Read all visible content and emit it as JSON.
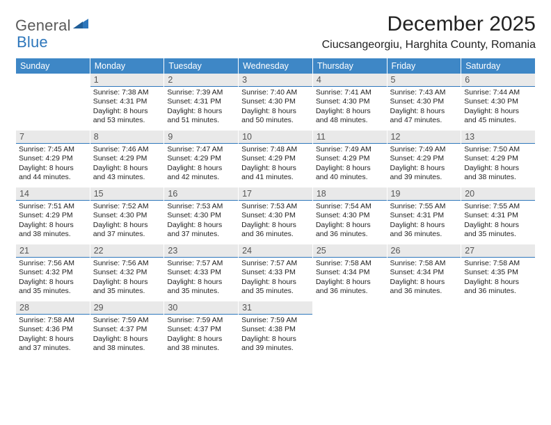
{
  "logo": {
    "text1": "General",
    "text2": "Blue"
  },
  "title": "December 2025",
  "location": "Ciucsangeorgiu, Harghita County, Romania",
  "colors": {
    "header_bg": "#3e87c6",
    "header_text": "#ffffff",
    "daynum_bg": "#e9e9e9",
    "daynum_text": "#555555",
    "daynum_border": "#2d76bb",
    "body_text": "#222222",
    "logo_gray": "#5a5a5a",
    "logo_blue": "#2d76bb",
    "page_bg": "#ffffff"
  },
  "typography": {
    "title_fontsize": 30,
    "location_fontsize": 16,
    "header_fontsize": 12.5,
    "daynum_fontsize": 12.5,
    "cell_fontsize": 10.5,
    "logo_fontsize": 22
  },
  "weekdays": [
    "Sunday",
    "Monday",
    "Tuesday",
    "Wednesday",
    "Thursday",
    "Friday",
    "Saturday"
  ],
  "weeks": [
    [
      {
        "n": "",
        "l1": "",
        "l2": "",
        "l3": "",
        "l4": ""
      },
      {
        "n": "1",
        "l1": "Sunrise: 7:38 AM",
        "l2": "Sunset: 4:31 PM",
        "l3": "Daylight: 8 hours",
        "l4": "and 53 minutes."
      },
      {
        "n": "2",
        "l1": "Sunrise: 7:39 AM",
        "l2": "Sunset: 4:31 PM",
        "l3": "Daylight: 8 hours",
        "l4": "and 51 minutes."
      },
      {
        "n": "3",
        "l1": "Sunrise: 7:40 AM",
        "l2": "Sunset: 4:30 PM",
        "l3": "Daylight: 8 hours",
        "l4": "and 50 minutes."
      },
      {
        "n": "4",
        "l1": "Sunrise: 7:41 AM",
        "l2": "Sunset: 4:30 PM",
        "l3": "Daylight: 8 hours",
        "l4": "and 48 minutes."
      },
      {
        "n": "5",
        "l1": "Sunrise: 7:43 AM",
        "l2": "Sunset: 4:30 PM",
        "l3": "Daylight: 8 hours",
        "l4": "and 47 minutes."
      },
      {
        "n": "6",
        "l1": "Sunrise: 7:44 AM",
        "l2": "Sunset: 4:30 PM",
        "l3": "Daylight: 8 hours",
        "l4": "and 45 minutes."
      }
    ],
    [
      {
        "n": "7",
        "l1": "Sunrise: 7:45 AM",
        "l2": "Sunset: 4:29 PM",
        "l3": "Daylight: 8 hours",
        "l4": "and 44 minutes."
      },
      {
        "n": "8",
        "l1": "Sunrise: 7:46 AM",
        "l2": "Sunset: 4:29 PM",
        "l3": "Daylight: 8 hours",
        "l4": "and 43 minutes."
      },
      {
        "n": "9",
        "l1": "Sunrise: 7:47 AM",
        "l2": "Sunset: 4:29 PM",
        "l3": "Daylight: 8 hours",
        "l4": "and 42 minutes."
      },
      {
        "n": "10",
        "l1": "Sunrise: 7:48 AM",
        "l2": "Sunset: 4:29 PM",
        "l3": "Daylight: 8 hours",
        "l4": "and 41 minutes."
      },
      {
        "n": "11",
        "l1": "Sunrise: 7:49 AM",
        "l2": "Sunset: 4:29 PM",
        "l3": "Daylight: 8 hours",
        "l4": "and 40 minutes."
      },
      {
        "n": "12",
        "l1": "Sunrise: 7:49 AM",
        "l2": "Sunset: 4:29 PM",
        "l3": "Daylight: 8 hours",
        "l4": "and 39 minutes."
      },
      {
        "n": "13",
        "l1": "Sunrise: 7:50 AM",
        "l2": "Sunset: 4:29 PM",
        "l3": "Daylight: 8 hours",
        "l4": "and 38 minutes."
      }
    ],
    [
      {
        "n": "14",
        "l1": "Sunrise: 7:51 AM",
        "l2": "Sunset: 4:29 PM",
        "l3": "Daylight: 8 hours",
        "l4": "and 38 minutes."
      },
      {
        "n": "15",
        "l1": "Sunrise: 7:52 AM",
        "l2": "Sunset: 4:30 PM",
        "l3": "Daylight: 8 hours",
        "l4": "and 37 minutes."
      },
      {
        "n": "16",
        "l1": "Sunrise: 7:53 AM",
        "l2": "Sunset: 4:30 PM",
        "l3": "Daylight: 8 hours",
        "l4": "and 37 minutes."
      },
      {
        "n": "17",
        "l1": "Sunrise: 7:53 AM",
        "l2": "Sunset: 4:30 PM",
        "l3": "Daylight: 8 hours",
        "l4": "and 36 minutes."
      },
      {
        "n": "18",
        "l1": "Sunrise: 7:54 AM",
        "l2": "Sunset: 4:30 PM",
        "l3": "Daylight: 8 hours",
        "l4": "and 36 minutes."
      },
      {
        "n": "19",
        "l1": "Sunrise: 7:55 AM",
        "l2": "Sunset: 4:31 PM",
        "l3": "Daylight: 8 hours",
        "l4": "and 36 minutes."
      },
      {
        "n": "20",
        "l1": "Sunrise: 7:55 AM",
        "l2": "Sunset: 4:31 PM",
        "l3": "Daylight: 8 hours",
        "l4": "and 35 minutes."
      }
    ],
    [
      {
        "n": "21",
        "l1": "Sunrise: 7:56 AM",
        "l2": "Sunset: 4:32 PM",
        "l3": "Daylight: 8 hours",
        "l4": "and 35 minutes."
      },
      {
        "n": "22",
        "l1": "Sunrise: 7:56 AM",
        "l2": "Sunset: 4:32 PM",
        "l3": "Daylight: 8 hours",
        "l4": "and 35 minutes."
      },
      {
        "n": "23",
        "l1": "Sunrise: 7:57 AM",
        "l2": "Sunset: 4:33 PM",
        "l3": "Daylight: 8 hours",
        "l4": "and 35 minutes."
      },
      {
        "n": "24",
        "l1": "Sunrise: 7:57 AM",
        "l2": "Sunset: 4:33 PM",
        "l3": "Daylight: 8 hours",
        "l4": "and 35 minutes."
      },
      {
        "n": "25",
        "l1": "Sunrise: 7:58 AM",
        "l2": "Sunset: 4:34 PM",
        "l3": "Daylight: 8 hours",
        "l4": "and 36 minutes."
      },
      {
        "n": "26",
        "l1": "Sunrise: 7:58 AM",
        "l2": "Sunset: 4:34 PM",
        "l3": "Daylight: 8 hours",
        "l4": "and 36 minutes."
      },
      {
        "n": "27",
        "l1": "Sunrise: 7:58 AM",
        "l2": "Sunset: 4:35 PM",
        "l3": "Daylight: 8 hours",
        "l4": "and 36 minutes."
      }
    ],
    [
      {
        "n": "28",
        "l1": "Sunrise: 7:58 AM",
        "l2": "Sunset: 4:36 PM",
        "l3": "Daylight: 8 hours",
        "l4": "and 37 minutes."
      },
      {
        "n": "29",
        "l1": "Sunrise: 7:59 AM",
        "l2": "Sunset: 4:37 PM",
        "l3": "Daylight: 8 hours",
        "l4": "and 38 minutes."
      },
      {
        "n": "30",
        "l1": "Sunrise: 7:59 AM",
        "l2": "Sunset: 4:37 PM",
        "l3": "Daylight: 8 hours",
        "l4": "and 38 minutes."
      },
      {
        "n": "31",
        "l1": "Sunrise: 7:59 AM",
        "l2": "Sunset: 4:38 PM",
        "l3": "Daylight: 8 hours",
        "l4": "and 39 minutes."
      },
      {
        "n": "",
        "l1": "",
        "l2": "",
        "l3": "",
        "l4": ""
      },
      {
        "n": "",
        "l1": "",
        "l2": "",
        "l3": "",
        "l4": ""
      },
      {
        "n": "",
        "l1": "",
        "l2": "",
        "l3": "",
        "l4": ""
      }
    ]
  ]
}
